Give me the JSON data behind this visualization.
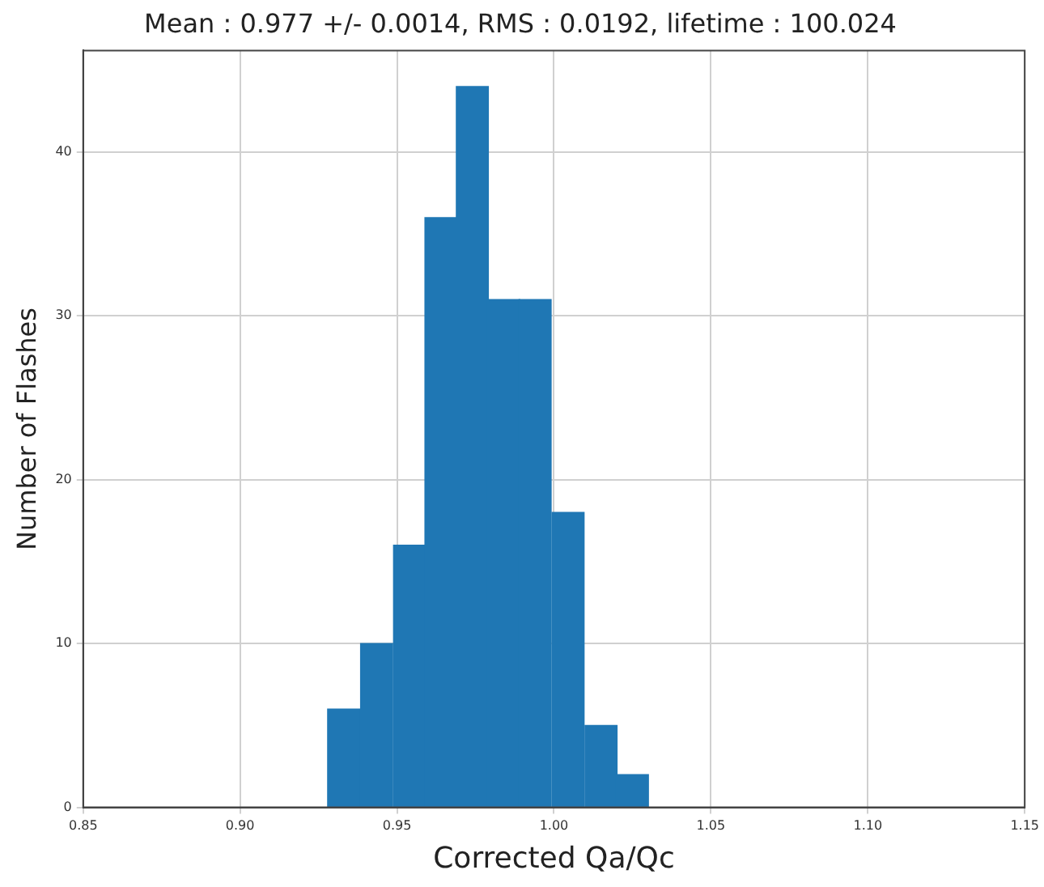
{
  "chart_data": {
    "type": "histogram",
    "title": "Mean : 0.977 +/- 0.0014, RMS : 0.0192, lifetime : 100.024",
    "xlabel": "Corrected Qa/Qc",
    "ylabel": "Number of Flashes",
    "bins": [
      0.928,
      0.938,
      0.949,
      0.959,
      0.969,
      0.979,
      0.989,
      0.999,
      1.01,
      1.02,
      1.03
    ],
    "values": [
      6,
      10,
      16,
      36,
      44,
      31,
      31,
      18,
      5,
      2
    ],
    "color": "#1f77b4",
    "xlim": [
      0.85,
      1.15
    ],
    "xticks": [
      {
        "value": 0.85,
        "label": "0.85"
      },
      {
        "value": 0.9,
        "label": "0.90"
      },
      {
        "value": 0.95,
        "label": "0.95"
      },
      {
        "value": 1.0,
        "label": "1.00"
      },
      {
        "value": 1.05,
        "label": "1.05"
      },
      {
        "value": 1.1,
        "label": "1.10"
      },
      {
        "value": 1.15,
        "label": "1.15"
      }
    ],
    "ylim": [
      0,
      46.2
    ],
    "yticks": [
      0,
      10,
      20,
      30,
      40
    ],
    "grid": true
  }
}
